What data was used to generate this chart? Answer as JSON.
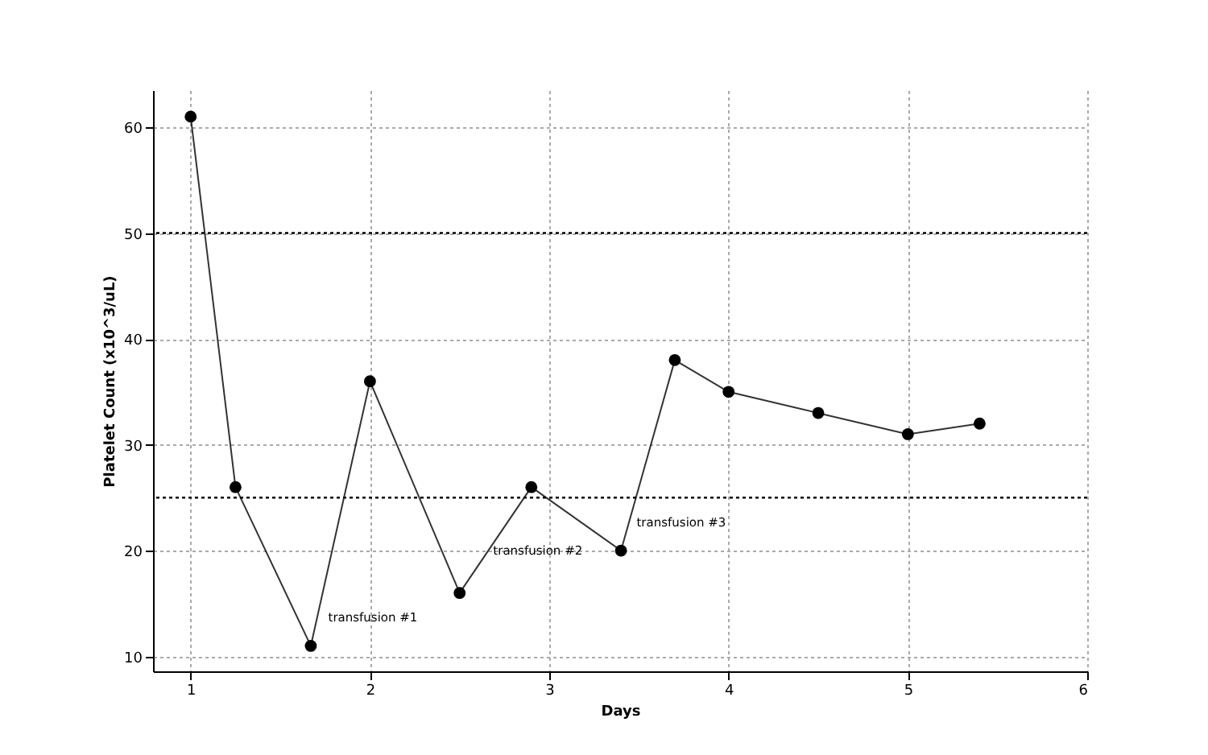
{
  "chart_data": {
    "type": "line",
    "xlabel": "Days",
    "ylabel": "Platelet Count (x10^3/uL)",
    "x": [
      1,
      1.25,
      1.67,
      2,
      2.5,
      2.9,
      3.4,
      3.7,
      4,
      4.5,
      5,
      5.4
    ],
    "series": [
      {
        "color": "#000000",
        "values": [
          61,
          26,
          11,
          36,
          16,
          26,
          20,
          38,
          35,
          33,
          31,
          32
        ]
      }
    ],
    "xlim": [
      0.79,
      6
    ],
    "xticks": [
      {
        "value": 1,
        "label": "1"
      },
      {
        "value": 2,
        "label": "2"
      },
      {
        "value": 3,
        "label": "3"
      },
      {
        "value": 4,
        "label": "4"
      },
      {
        "value": 5,
        "label": "5"
      },
      {
        "value": 6,
        "label": "6"
      }
    ],
    "ylim": [
      8.6,
      63.5
    ],
    "yticks": [
      10,
      20,
      30,
      40,
      50,
      60
    ],
    "ref_lines": [
      {
        "axis": "y",
        "value": 50,
        "color": "#000000",
        "line_style": "dotted"
      },
      {
        "axis": "y",
        "value": 25,
        "color": "#000000",
        "line_style": "dotted"
      }
    ],
    "annotations": [
      {
        "text": "transfusion #1",
        "x": 1.74,
        "y": 13.6
      },
      {
        "text": "transfusion #2",
        "x": 2.66,
        "y": 19.9
      },
      {
        "text": "transfusion #3",
        "x": 3.46,
        "y": 22.6
      }
    ],
    "grid": true,
    "marker": "circle",
    "line_style": "solid"
  }
}
